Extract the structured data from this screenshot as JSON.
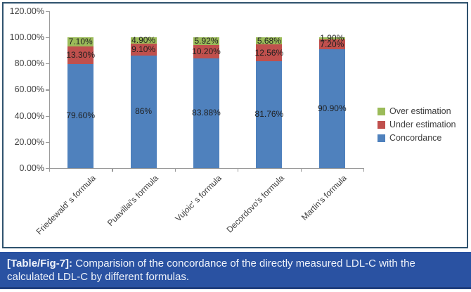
{
  "colors": {
    "figure_border": "#2f526e",
    "caption_bg": "#2a52a2",
    "axis": "#9a9a9a"
  },
  "chart_data": {
    "type": "bar",
    "stacked": true,
    "title": "",
    "xlabel": "",
    "ylabel": "",
    "grid": false,
    "categories": [
      "Friedewald' s formula",
      "Puavillai's formula",
      "Vujoic' s formula",
      "Decordovo's formula",
      "Martin's formula"
    ],
    "series": [
      {
        "name": "Concordance",
        "color": "#4f81bd",
        "values": [
          79.6,
          86,
          83.88,
          81.76,
          90.9
        ],
        "data_labels": [
          "79.60%",
          "86%",
          "83.88%",
          "81.76%",
          "90.90%"
        ]
      },
      {
        "name": "Under estimation",
        "color": "#c0504d",
        "values": [
          13.3,
          9.1,
          10.2,
          12.56,
          7.2
        ],
        "data_labels": [
          "13.30%",
          "9.10%",
          "10.20%",
          "12.56%",
          "7.20%"
        ]
      },
      {
        "name": "Over estimation",
        "color": "#9bbb59",
        "values": [
          7.1,
          4.9,
          5.92,
          5.68,
          1.9
        ],
        "data_labels": [
          "7.10%",
          "4.90%",
          "5.92%",
          "5.68%",
          "1.90%"
        ]
      }
    ],
    "y_axis": {
      "min": 0,
      "max": 120,
      "step": 20,
      "tick_labels": [
        "0.00%",
        "20.00%",
        "40.00%",
        "60.00%",
        "80.00%",
        "100.00%",
        "120.00%"
      ]
    },
    "legend": {
      "position": "right",
      "items": [
        {
          "label": "Over estimation",
          "color": "#9bbb59"
        },
        {
          "label": "Under estimation",
          "color": "#c0504d"
        },
        {
          "label": "Concordance",
          "color": "#4f81bd"
        }
      ]
    }
  },
  "caption": {
    "tag": "[Table/Fig-7]:",
    "text": "Comparision of the concordance of the directly measured LDL-C with the calculated LDL-C by different formulas."
  }
}
